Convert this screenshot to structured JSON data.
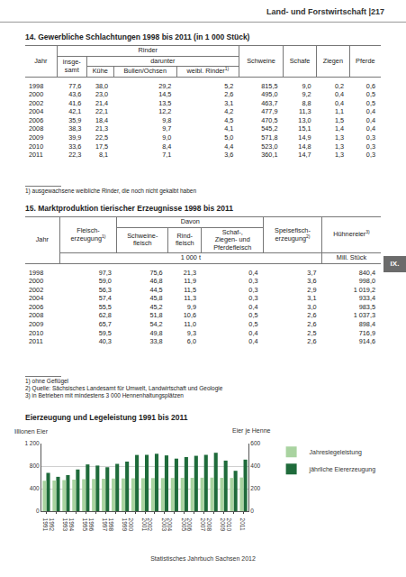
{
  "header": {
    "title": "Land- und Forstwirtschaft |217"
  },
  "section_tab": "IX.",
  "table14": {
    "title": "14. Gewerbliche Schlachtungen 1998 bis 2011 (in 1 000 Stück)",
    "header": [
      [
        {
          "lines": [
            "Jahr"
          ],
          "rowspan": 3
        },
        {
          "lines": [
            "Rinder"
          ],
          "colspan": 4
        },
        {
          "lines": [
            "Schweine"
          ],
          "rowspan": 3
        },
        {
          "lines": [
            "Schafe"
          ],
          "rowspan": 3
        },
        {
          "lines": [
            "Ziegen"
          ],
          "rowspan": 3
        },
        {
          "lines": [
            "Pferde"
          ],
          "rowspan": 3
        }
      ],
      [
        {
          "lines": [
            "insge-",
            "samt"
          ],
          "rowspan": 2
        },
        {
          "lines": [
            "darunter"
          ],
          "colspan": 3
        }
      ],
      [
        {
          "lines": [
            "Kühe"
          ]
        },
        {
          "lines": [
            "Bullen/Ochsen"
          ]
        },
        {
          "lines": [
            "weibl. Rinder"
          ],
          "note": "1)"
        }
      ]
    ],
    "rows": [
      [
        "1998",
        "77,6",
        "38,0",
        "29,2",
        "5,2",
        "815,5",
        "9,0",
        "0,2",
        "0,6"
      ],
      [
        "2000",
        "43,6",
        "23,0",
        "14,5",
        "2,6",
        "495,0",
        "9,2",
        "0,4",
        "0,5"
      ],
      [
        "2002",
        "41,6",
        "21,4",
        "13,5",
        "3,1",
        "463,7",
        "8,8",
        "0,4",
        "0,5"
      ],
      [
        "2004",
        "42,1",
        "22,1",
        "12,2",
        "4,2",
        "477,9",
        "11,3",
        "1,1",
        "0,4"
      ],
      [
        "2006",
        "35,9",
        "18,4",
        "9,8",
        "4,5",
        "470,5",
        "13,0",
        "1,5",
        "0,4"
      ],
      [
        "2008",
        "38,3",
        "21,3",
        "9,7",
        "4,1",
        "545,2",
        "15,1",
        "1,4",
        "0,4"
      ],
      [
        "2009",
        "39,9",
        "22,5",
        "9,0",
        "5,0",
        "571,8",
        "14,9",
        "1,3",
        "0,3"
      ],
      [
        "2010",
        "33,6",
        "17,5",
        "8,4",
        "4,4",
        "523,0",
        "14,8",
        "1,3",
        "0,3"
      ],
      [
        "2011",
        "22,3",
        "8,1",
        "7,1",
        "3,6",
        "360,1",
        "14,7",
        "1,3",
        "0,3"
      ]
    ],
    "footnotes": [
      "1) ausgewachsene weibliche Rinder, die noch nicht gekalbt haben"
    ]
  },
  "table15": {
    "title": "15. Marktproduktion tierischer Erzeugnisse 1998 bis 2011",
    "header": [
      [
        {
          "lines": [
            "Jahr"
          ],
          "rowspan": 3
        },
        {
          "lines": [
            "Fleisch-",
            "erzeugung"
          ],
          "note": "1)",
          "rowspan": 2
        },
        {
          "lines": [
            "Davon"
          ],
          "colspan": 3
        },
        {
          "lines": [
            "Speisefisch-",
            "erzeugung"
          ],
          "note": "2)",
          "rowspan": 2
        },
        {
          "lines": [
            "Hühnereier"
          ],
          "note": "3)",
          "rowspan": 2
        }
      ],
      [
        {
          "lines": [
            "Schweine-",
            "fleisch"
          ]
        },
        {
          "lines": [
            "Rind-",
            "fleisch"
          ]
        },
        {
          "lines": [
            "Schaf-,",
            "Ziegen- und",
            "Pferdefleisch"
          ]
        }
      ],
      [
        {
          "lines": [
            "1 000 t"
          ],
          "colspan": 5
        },
        {
          "lines": [
            "Mill. Stück"
          ]
        }
      ]
    ],
    "rows": [
      [
        "1998",
        "97,3",
        "75,6",
        "21,3",
        "0,4",
        "3,7",
        "840,4"
      ],
      [
        "2000",
        "59,0",
        "46,8",
        "11,9",
        "0,3",
        "3,6",
        "998,0"
      ],
      [
        "2002",
        "56,3",
        "44,5",
        "11,5",
        "0,3",
        "2,9",
        "1 019,2"
      ],
      [
        "2004",
        "57,4",
        "45,8",
        "11,3",
        "0,3",
        "3,1",
        "933,4"
      ],
      [
        "2006",
        "55,5",
        "45,2",
        "9,9",
        "0,4",
        "3,0",
        "983,5"
      ],
      [
        "2008",
        "62,8",
        "51,8",
        "10,6",
        "0,5",
        "2,6",
        "1 037,3"
      ],
      [
        "2009",
        "65,7",
        "54,2",
        "11,0",
        "0,5",
        "2,6",
        "898,4"
      ],
      [
        "2010",
        "59,5",
        "49,8",
        "9,3",
        "0,4",
        "2,5",
        "716,9"
      ],
      [
        "2011",
        "40,3",
        "33,8",
        "6,0",
        "0,4",
        "2,6",
        "914,6"
      ]
    ],
    "footnotes": [
      "1) ohne Geflügel",
      "2) Quelle: Sächsisches Landesamt für Umwelt, Landwirtschaft und Geologie",
      "3) in Betrieben mit mindestens 3 000 Hennenhaltungsplätzen"
    ]
  },
  "chart_data": {
    "type": "bar",
    "title": "Eierzeugung und Legeleistung 1991 bis 2011",
    "y_label": "Millionen Eier",
    "y2_label": "Eier je Henne",
    "categories": [
      "1991",
      "1992",
      "1993",
      "1994",
      "1995",
      "1996",
      "1997",
      "1998",
      "1999",
      "2000",
      "2001",
      "2002",
      "2003",
      "2004",
      "2005",
      "2006",
      "2007",
      "2008",
      "2009",
      "2010",
      "2011"
    ],
    "series": [
      {
        "name": "Jahreslegeleistung",
        "color": "#a9d3a0",
        "axis": "y2",
        "values": [
          270,
          272,
          276,
          280,
          284,
          286,
          288,
          290,
          291,
          292,
          293,
          294,
          294,
          295,
          296,
          296,
          297,
          298,
          296,
          295,
          299
        ]
      },
      {
        "name": "jährliche Eiererzeugung",
        "color": "#1f6b3b",
        "values": [
          680,
          610,
          640,
          740,
          830,
          810,
          780,
          840,
          880,
          998,
          1000,
          1019,
          990,
          933,
          960,
          983,
          1000,
          1037,
          898,
          717,
          915
        ]
      }
    ],
    "ylim": [
      0,
      1200
    ],
    "yticks": [
      0,
      400,
      800,
      {
        "value": 1200,
        "label": "1 200"
      }
    ],
    "y2lim": [
      0,
      600
    ],
    "y2ticks": [
      0,
      200,
      400,
      600
    ],
    "grid": true,
    "legend": "right"
  },
  "footer": "Statistisches Jahrbuch Sachsen 2012"
}
